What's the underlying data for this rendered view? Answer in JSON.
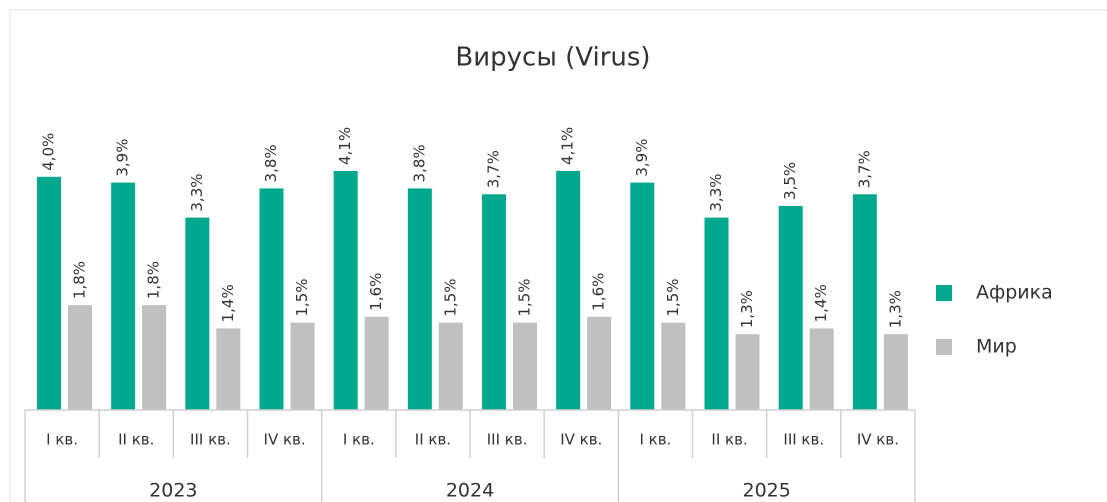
{
  "chart_data": {
    "type": "bar",
    "title": "Вирусы (Virus)",
    "categories": [
      "I кв.",
      "II кв.",
      "III кв.",
      "IV кв.",
      "I кв.",
      "II кв.",
      "III кв.",
      "IV кв.",
      "I кв.",
      "II кв.",
      "III кв.",
      "IV кв."
    ],
    "groups": [
      "2023",
      "2024",
      "2025"
    ],
    "legend": "right",
    "series": [
      {
        "name": "Африка",
        "color": "#00a88e",
        "values": [
          4.0,
          3.9,
          3.3,
          3.8,
          4.1,
          3.8,
          3.7,
          4.1,
          3.9,
          3.3,
          3.5,
          3.7
        ],
        "value_labels": [
          "4,0%",
          "3,9%",
          "3,3%",
          "3,8%",
          "4,1%",
          "3,8%",
          "3,7%",
          "4,1%",
          "3,9%",
          "3,3%",
          "3,5%",
          "3,7%"
        ]
      },
      {
        "name": "Мир",
        "color": "#c0c0c0",
        "values": [
          1.8,
          1.8,
          1.4,
          1.5,
          1.6,
          1.5,
          1.5,
          1.6,
          1.5,
          1.3,
          1.4,
          1.3
        ],
        "value_labels": [
          "1,8%",
          "1,8%",
          "1,4%",
          "1,5%",
          "1,6%",
          "1,5%",
          "1,5%",
          "1,6%",
          "1,5%",
          "1,3%",
          "1,4%",
          "1,3%"
        ]
      }
    ]
  }
}
